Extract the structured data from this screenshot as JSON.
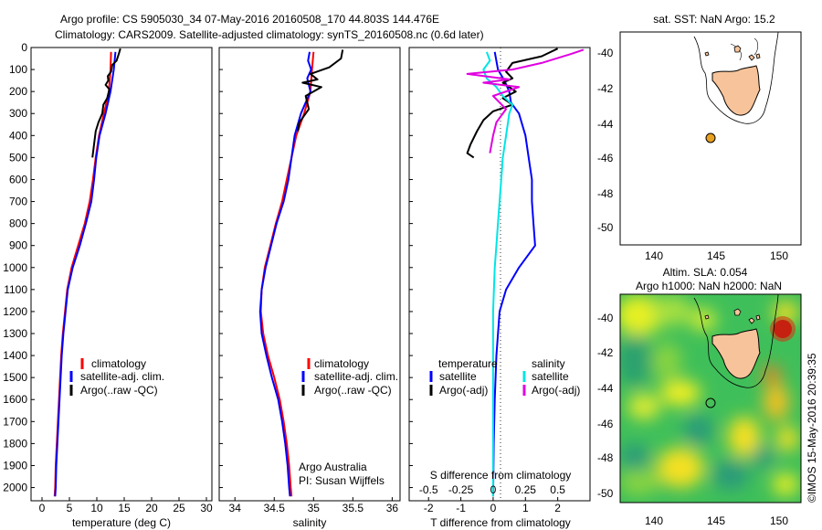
{
  "header": {
    "line1": "Argo profile: CS 5905030_34 07-May-2016 20160508_170 44.803S 144.476E",
    "line2": "Climatology: CARS2009. Satellite-adjusted climatology: synTS_20160508.nc (0.6d later)"
  },
  "colors": {
    "climatology": "#ff0000",
    "satellite": "#0000ff",
    "argo": "#000000",
    "sal_satellite": "#00e5e5",
    "sal_argo": "#e000e0",
    "land": "#f7c39a",
    "float_marker": "#e8a020"
  },
  "chart_data": [
    {
      "type": "line",
      "name": "temperature-profile",
      "xlabel": "temperature (deg C)",
      "ylabel": "",
      "xlim": [
        -2,
        31
      ],
      "ylim": [
        2060,
        0
      ],
      "xticks": [
        0,
        5,
        10,
        15,
        20,
        25,
        30
      ],
      "yticks": [
        0,
        100,
        200,
        300,
        400,
        500,
        600,
        700,
        800,
        900,
        1000,
        1100,
        1200,
        1300,
        1400,
        1500,
        1600,
        1700,
        1800,
        1900,
        2000
      ],
      "legend": [
        "climatology",
        "satellite-adj. clim.",
        "Argo(..raw -QC)"
      ],
      "series": [
        {
          "name": "climatology",
          "color": "#ff0000",
          "points": [
            [
              12.6,
              20
            ],
            [
              12.5,
              100
            ],
            [
              12.2,
              200
            ],
            [
              11.3,
              300
            ],
            [
              10.4,
              400
            ],
            [
              9.8,
              500
            ],
            [
              9.3,
              600
            ],
            [
              8.7,
              700
            ],
            [
              7.8,
              800
            ],
            [
              6.6,
              900
            ],
            [
              5.4,
              1000
            ],
            [
              4.6,
              1100
            ],
            [
              4.2,
              1200
            ],
            [
              3.8,
              1300
            ],
            [
              3.5,
              1400
            ],
            [
              3.3,
              1500
            ],
            [
              3.1,
              1600
            ],
            [
              2.9,
              1700
            ],
            [
              2.7,
              1800
            ],
            [
              2.5,
              1900
            ],
            [
              2.4,
              2000
            ],
            [
              2.3,
              2040
            ]
          ]
        },
        {
          "name": "satellite-adj. clim.",
          "color": "#0000ff",
          "points": [
            [
              13.4,
              20
            ],
            [
              13.1,
              100
            ],
            [
              12.5,
              200
            ],
            [
              11.6,
              300
            ],
            [
              10.5,
              400
            ],
            [
              9.9,
              500
            ],
            [
              9.5,
              600
            ],
            [
              9.0,
              700
            ],
            [
              8.0,
              800
            ],
            [
              6.9,
              900
            ],
            [
              5.6,
              1000
            ],
            [
              4.7,
              1100
            ],
            [
              4.3,
              1200
            ],
            [
              3.9,
              1300
            ],
            [
              3.6,
              1400
            ],
            [
              3.4,
              1500
            ],
            [
              3.2,
              1600
            ],
            [
              3.0,
              1700
            ],
            [
              2.8,
              1800
            ],
            [
              2.6,
              1900
            ],
            [
              2.5,
              2000
            ],
            [
              2.4,
              2040
            ]
          ]
        },
        {
          "name": "Argo(..raw -QC)",
          "color": "#000000",
          "points": [
            [
              14.3,
              5
            ],
            [
              14.0,
              30
            ],
            [
              13.6,
              60
            ],
            [
              12.8,
              80
            ],
            [
              12.6,
              110
            ],
            [
              12.0,
              130
            ],
            [
              12.1,
              150
            ],
            [
              11.6,
              170
            ],
            [
              12.3,
              190
            ],
            [
              11.9,
              230
            ],
            [
              11.2,
              260
            ],
            [
              11.0,
              300
            ],
            [
              10.3,
              340
            ],
            [
              9.8,
              380
            ],
            [
              9.6,
              420
            ],
            [
              9.4,
              460
            ],
            [
              9.2,
              500
            ]
          ]
        }
      ]
    },
    {
      "type": "line",
      "name": "salinity-profile",
      "xlabel": "salinity",
      "xlim": [
        33.8,
        36.1
      ],
      "ylim": [
        2060,
        0
      ],
      "xticks": [
        34,
        34.5,
        35,
        35.5,
        36
      ],
      "legend": [
        "climatology",
        "satellite-adj. clim.",
        "Argo(..raw -QC)"
      ],
      "annotation": [
        "Argo Australia",
        "PI: Susan Wijffels"
      ],
      "series": [
        {
          "name": "climatology",
          "color": "#ff0000",
          "points": [
            [
              35.0,
              20
            ],
            [
              34.98,
              100
            ],
            [
              34.96,
              200
            ],
            [
              34.88,
              300
            ],
            [
              34.78,
              400
            ],
            [
              34.72,
              500
            ],
            [
              34.66,
              600
            ],
            [
              34.6,
              700
            ],
            [
              34.52,
              800
            ],
            [
              34.45,
              900
            ],
            [
              34.38,
              1000
            ],
            [
              34.34,
              1100
            ],
            [
              34.33,
              1200
            ],
            [
              34.36,
              1300
            ],
            [
              34.42,
              1400
            ],
            [
              34.5,
              1500
            ],
            [
              34.57,
              1600
            ],
            [
              34.62,
              1700
            ],
            [
              34.66,
              1800
            ],
            [
              34.69,
              1900
            ],
            [
              34.71,
              2000
            ],
            [
              34.72,
              2040
            ]
          ]
        },
        {
          "name": "satellite-adj. clim.",
          "color": "#0000ff",
          "points": [
            [
              34.95,
              20
            ],
            [
              34.93,
              60
            ],
            [
              34.97,
              100
            ],
            [
              34.92,
              140
            ],
            [
              34.96,
              200
            ],
            [
              34.84,
              300
            ],
            [
              34.76,
              400
            ],
            [
              34.72,
              500
            ],
            [
              34.68,
              600
            ],
            [
              34.62,
              700
            ],
            [
              34.53,
              800
            ],
            [
              34.46,
              900
            ],
            [
              34.39,
              1000
            ],
            [
              34.34,
              1100
            ],
            [
              34.32,
              1200
            ],
            [
              34.34,
              1300
            ],
            [
              34.4,
              1400
            ],
            [
              34.47,
              1500
            ],
            [
              34.55,
              1600
            ],
            [
              34.6,
              1700
            ],
            [
              34.64,
              1800
            ],
            [
              34.67,
              1900
            ],
            [
              34.69,
              2000
            ],
            [
              34.7,
              2040
            ]
          ]
        },
        {
          "name": "Argo(..raw -QC)",
          "color": "#000000",
          "points": [
            [
              35.37,
              10
            ],
            [
              35.35,
              50
            ],
            [
              35.2,
              90
            ],
            [
              34.96,
              120
            ],
            [
              35.05,
              145
            ],
            [
              34.86,
              160
            ],
            [
              35.1,
              180
            ],
            [
              34.9,
              220
            ],
            [
              34.94,
              280
            ],
            [
              34.82,
              340
            ],
            [
              34.8,
              380
            ]
          ]
        }
      ]
    },
    {
      "type": "line",
      "name": "difference-profile",
      "xlabel": "T difference from climatology",
      "xlabel_top": "S difference from climatology",
      "xlim": [
        -2.6,
        3.0
      ],
      "ylim": [
        2060,
        0
      ],
      "xticks": [
        -2,
        -1,
        0,
        1,
        2
      ],
      "xticklabels_top": [
        "-0.5",
        "-0.25",
        "0",
        "0.25",
        "0.5"
      ],
      "legend_columns": [
        {
          "title": "temperature",
          "items": [
            "satellite",
            "Argo(-adj)"
          ]
        },
        {
          "title": "salinity",
          "items": [
            "satellite",
            "Argo(-adj)"
          ]
        }
      ],
      "series": [
        {
          "name": "temperature satellite",
          "color": "#0000ff",
          "points": [
            [
              0.05,
              20
            ],
            [
              0.15,
              100
            ],
            [
              0.35,
              150
            ],
            [
              0.5,
              200
            ],
            [
              0.55,
              250
            ],
            [
              0.8,
              300
            ],
            [
              1.0,
              400
            ],
            [
              1.1,
              500
            ],
            [
              1.2,
              600
            ],
            [
              1.2,
              700
            ],
            [
              1.25,
              800
            ],
            [
              1.3,
              900
            ],
            [
              0.8,
              1000
            ],
            [
              0.4,
              1100
            ],
            [
              0.2,
              1200
            ],
            [
              0.1,
              1400
            ],
            [
              0.05,
              1600
            ],
            [
              0.02,
              1800
            ],
            [
              0.0,
              2040
            ]
          ]
        },
        {
          "name": "temperature Argo(-adj)",
          "color": "#000000",
          "points": [
            [
              2.0,
              5
            ],
            [
              1.5,
              40
            ],
            [
              0.6,
              70
            ],
            [
              0.4,
              110
            ],
            [
              0.6,
              140
            ],
            [
              0.3,
              160
            ],
            [
              0.7,
              200
            ],
            [
              0.3,
              230
            ],
            [
              0.6,
              260
            ],
            [
              0.0,
              290
            ],
            [
              -0.3,
              330
            ],
            [
              -0.5,
              380
            ],
            [
              -0.7,
              440
            ],
            [
              -0.8,
              480
            ],
            [
              -0.6,
              500
            ]
          ]
        },
        {
          "name": "salinity satellite",
          "color": "#00e5e5",
          "points": [
            [
              -0.2,
              20
            ],
            [
              -0.1,
              60
            ],
            [
              -0.3,
              100
            ],
            [
              -0.2,
              140
            ],
            [
              0.1,
              180
            ],
            [
              0.3,
              220
            ],
            [
              0.6,
              260
            ],
            [
              0.5,
              300
            ],
            [
              0.4,
              400
            ],
            [
              0.3,
              500
            ],
            [
              0.25,
              600
            ],
            [
              0.2,
              700
            ],
            [
              0.15,
              800
            ],
            [
              0.1,
              900
            ],
            [
              0.05,
              1000
            ],
            [
              0.0,
              1200
            ],
            [
              0.0,
              1600
            ],
            [
              0.0,
              2040
            ]
          ]
        },
        {
          "name": "salinity Argo(-adj)",
          "color": "#e000e0",
          "points": [
            [
              2.8,
              10
            ],
            [
              2.4,
              30
            ],
            [
              1.5,
              70
            ],
            [
              0.6,
              100
            ],
            [
              -0.8,
              120
            ],
            [
              0.5,
              145
            ],
            [
              -0.3,
              160
            ],
            [
              0.8,
              180
            ],
            [
              0.0,
              220
            ],
            [
              0.4,
              280
            ],
            [
              0.1,
              340
            ],
            [
              0.0,
              400
            ],
            [
              -0.1,
              480
            ]
          ]
        }
      ]
    }
  ],
  "map_top": {
    "title": "sat. SST: NaN Argo: 15.2",
    "xticks": [
      "140",
      "145",
      "150"
    ],
    "yticks": [
      "-40",
      "-42",
      "-44",
      "-46",
      "-48",
      "-50"
    ],
    "float_lon": 144.476,
    "float_lat": -44.803
  },
  "map_bottom": {
    "title1": "Altim. SLA: 0.054",
    "title2": "Argo h1000: NaN h2000: NaN",
    "xticks": [
      "140",
      "145",
      "150"
    ],
    "yticks": [
      "-40",
      "-42",
      "-44",
      "-46",
      "-48",
      "-50"
    ],
    "float_lon": 144.476,
    "float_lat": -44.803
  },
  "footer_vertical": "©IMOS 15-May-2016 20:39:35"
}
